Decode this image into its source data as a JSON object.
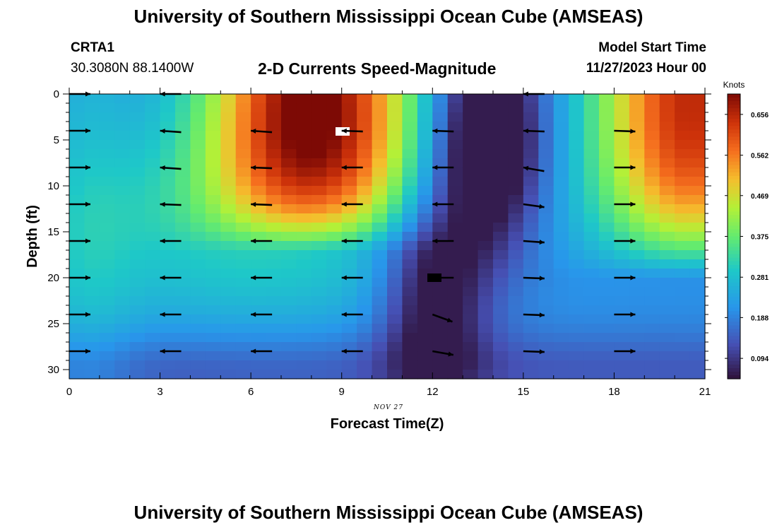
{
  "header": {
    "title_top": "University of Southern Mississippi Ocean Cube (AMSEAS)",
    "title_bottom": "University of Southern Mississippi Ocean Cube (AMSEAS)",
    "station": "CRTA1",
    "coords": "30.3080N  88.1400W",
    "plot_title": "2-D Currents Speed-Magnitude",
    "model_label": "Model Start Time",
    "model_time": "11/27/2023 Hour 00"
  },
  "chart_data": {
    "type": "heatmap",
    "title": "2-D Currents Speed-Magnitude",
    "xlabel": "Forecast Time(Z)",
    "ylabel": "Depth (ft)",
    "date_label": "NOV 27",
    "xlim": [
      0,
      21
    ],
    "ylim": [
      0,
      31
    ],
    "x_ticks": [
      0,
      3,
      6,
      9,
      12,
      15,
      18,
      21
    ],
    "y_ticks": [
      0,
      5,
      10,
      15,
      20,
      25,
      30
    ],
    "colorbar": {
      "label": "Knots",
      "min": 0.047,
      "max": 0.703,
      "ticks": [
        "0.094",
        "0.188",
        "0.281",
        "0.375",
        "0.469",
        "0.562",
        "0.656"
      ]
    },
    "vectors": [
      {
        "x": 0,
        "depths": [
          0,
          4,
          8,
          12,
          16,
          20,
          24,
          28
        ],
        "dir": [
          0,
          0,
          0,
          0,
          0,
          0,
          0,
          0
        ]
      },
      {
        "x": 3,
        "depths": [
          4,
          8,
          12,
          16,
          20,
          24,
          28
        ],
        "dir": [
          184,
          184,
          182,
          180,
          180,
          180,
          180
        ]
      },
      {
        "x": 6,
        "depths": [
          4,
          8,
          12,
          16,
          20,
          24,
          28
        ],
        "dir": [
          184,
          182,
          182,
          180,
          180,
          180,
          180
        ]
      },
      {
        "x": 9,
        "depths": [
          4,
          8,
          12,
          16,
          20,
          24,
          28
        ],
        "dir": [
          182,
          180,
          180,
          180,
          180,
          180,
          180
        ]
      },
      {
        "x": 12,
        "depths": [
          4,
          8,
          12,
          16,
          20,
          24,
          28
        ],
        "dir": [
          182,
          180,
          180,
          180,
          180,
          20,
          10
        ]
      },
      {
        "x": 15,
        "depths": [
          0,
          4,
          8,
          12,
          16,
          20,
          24,
          28
        ],
        "dir": [
          180,
          182,
          190,
          8,
          4,
          2,
          2,
          2
        ]
      },
      {
        "x": 18,
        "depths": [
          4,
          8,
          12,
          16,
          20,
          24,
          28
        ],
        "dir": [
          2,
          0,
          0,
          0,
          0,
          0,
          0
        ]
      },
      {
        "x": 3,
        "depths": [
          0
        ],
        "dir": [
          180
        ]
      }
    ]
  }
}
